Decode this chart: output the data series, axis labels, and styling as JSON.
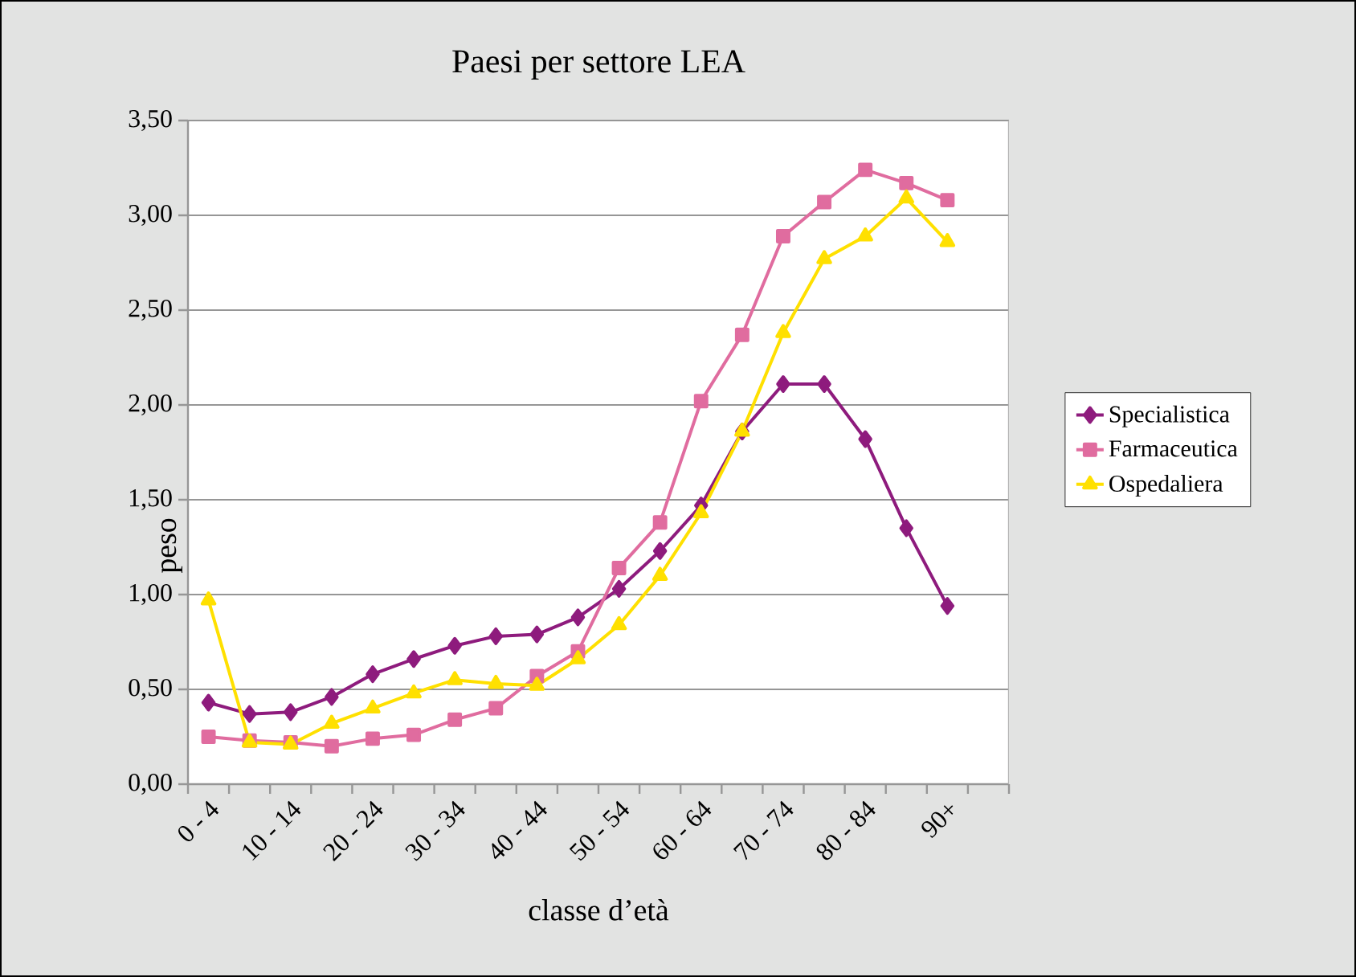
{
  "chart_data": {
    "type": "line",
    "title": "Paesi per settore LEA",
    "xlabel": "classe d’età",
    "ylabel": "peso",
    "categories": [
      "0 - 4",
      null,
      "10 - 14",
      null,
      "20 - 24",
      null,
      "30 - 34",
      null,
      "40 - 44",
      null,
      "50 - 54",
      null,
      "60 - 64",
      null,
      "70 - 74",
      null,
      "80 - 84",
      null,
      "90+",
      null
    ],
    "series": [
      {
        "name": "Specialistica",
        "color": "#8e1b7d",
        "marker": "diamond",
        "values": [
          0.43,
          0.37,
          0.38,
          0.46,
          0.58,
          0.66,
          0.73,
          0.78,
          0.79,
          0.88,
          1.03,
          1.23,
          1.47,
          1.86,
          2.11,
          2.11,
          1.82,
          1.35,
          0.94,
          null
        ]
      },
      {
        "name": "Farmaceutica",
        "color": "#e06c9f",
        "marker": "square",
        "values": [
          0.25,
          0.23,
          0.22,
          0.2,
          0.24,
          0.26,
          0.34,
          0.4,
          0.57,
          0.7,
          1.14,
          1.38,
          2.02,
          2.37,
          2.89,
          3.07,
          3.24,
          3.17,
          3.08,
          null
        ]
      },
      {
        "name": "Ospedaliera",
        "color": "#ffe000",
        "marker": "triangle",
        "values": [
          0.97,
          0.22,
          0.21,
          0.32,
          0.4,
          0.48,
          0.55,
          0.53,
          0.52,
          0.66,
          0.84,
          1.1,
          1.43,
          1.86,
          2.38,
          2.77,
          2.89,
          3.09,
          2.86,
          null
        ]
      }
    ],
    "ylim": [
      0,
      3.5
    ],
    "yticks": [
      {
        "value": 0,
        "label": "0,00"
      },
      {
        "value": 0.5,
        "label": "0,50"
      },
      {
        "value": 1,
        "label": "1,00"
      },
      {
        "value": 1.5,
        "label": "1,50"
      },
      {
        "value": 2,
        "label": "2,00"
      },
      {
        "value": 2.5,
        "label": "2,50"
      },
      {
        "value": 3,
        "label": "3,00"
      },
      {
        "value": 3.5,
        "label": "3,50"
      }
    ],
    "grid": "y",
    "legend": "right",
    "line_style": "solid"
  }
}
